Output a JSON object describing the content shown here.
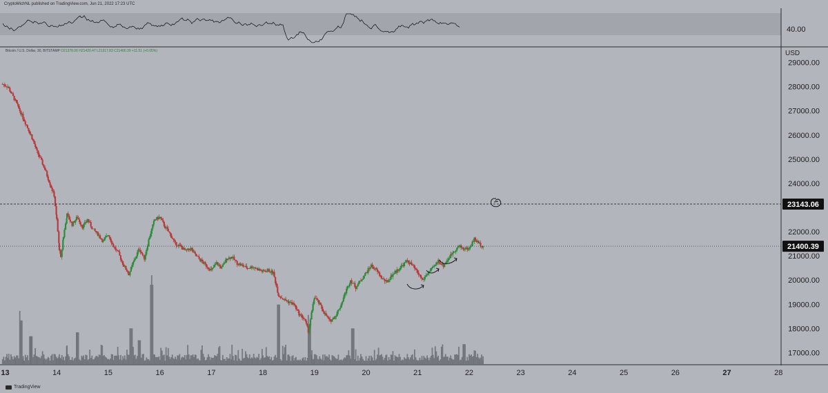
{
  "header": {
    "publish_line": "CryptoMichNL published on TradingView.com, Jun 21, 2022 17:23 UTC"
  },
  "symbol": {
    "name": "Bitcoin / U.S. Dollar, 30, BITSTAMP",
    "ohlc": "O21378.06 H21420.47 L21317.83 C21400.39 +11.51 (+0.05%)"
  },
  "currency_label": "USD",
  "watermark": "TradingView",
  "colors": {
    "background": "#b3b5bd",
    "up_candle": "#2e8b3a",
    "down_candle": "#b83a3a",
    "rsi_line": "#1b1b1b",
    "rsi_band": "#a3a5ad",
    "volume_bar": "#6b6d74",
    "annotation": "#1b1b1b",
    "price_tag_bg": "#101010",
    "price_tag_text": "#ffffff"
  },
  "chart_data": {
    "type": "candlestick",
    "title": "Bitcoin / U.S. Dollar, 30, BITSTAMP",
    "x_ticks": [
      "13",
      "14",
      "15",
      "16",
      "17",
      "18",
      "19",
      "20",
      "21",
      "22",
      "23",
      "24",
      "25",
      "26",
      "27",
      "28"
    ],
    "y_ticks": [
      "29000.00",
      "28000.00",
      "27000.00",
      "26000.00",
      "25000.00",
      "24000.00",
      "22000.00",
      "21000.00",
      "20000.00",
      "19000.00",
      "18000.00",
      "17000.00"
    ],
    "ylim": [
      16500,
      29300
    ],
    "xlim": [
      12.9,
      28.05
    ],
    "horizontal_lines": [
      {
        "value": 23143.06,
        "label": "23143.06",
        "style": "dashed"
      },
      {
        "value": 21400.39,
        "label": "21400.39",
        "style": "dotted"
      }
    ],
    "price_path": [
      [
        12.95,
        28100
      ],
      [
        13.05,
        28000
      ],
      [
        13.2,
        27400
      ],
      [
        13.35,
        26700
      ],
      [
        13.5,
        26000
      ],
      [
        13.62,
        25300
      ],
      [
        13.75,
        24700
      ],
      [
        13.85,
        24100
      ],
      [
        13.95,
        23500
      ],
      [
        14.0,
        22500
      ],
      [
        14.05,
        21300
      ],
      [
        14.08,
        20900
      ],
      [
        14.13,
        21800
      ],
      [
        14.2,
        22700
      ],
      [
        14.3,
        22300
      ],
      [
        14.4,
        22600
      ],
      [
        14.5,
        22200
      ],
      [
        14.6,
        22500
      ],
      [
        14.7,
        22100
      ],
      [
        14.8,
        21900
      ],
      [
        14.9,
        21600
      ],
      [
        15.0,
        21900
      ],
      [
        15.1,
        21400
      ],
      [
        15.2,
        21100
      ],
      [
        15.3,
        20600
      ],
      [
        15.4,
        20250
      ],
      [
        15.5,
        20800
      ],
      [
        15.6,
        21300
      ],
      [
        15.7,
        20900
      ],
      [
        15.8,
        21800
      ],
      [
        15.9,
        22500
      ],
      [
        16.0,
        22600
      ],
      [
        16.1,
        22200
      ],
      [
        16.2,
        21900
      ],
      [
        16.3,
        21500
      ],
      [
        16.4,
        21400
      ],
      [
        16.5,
        21200
      ],
      [
        16.6,
        21300
      ],
      [
        16.7,
        21000
      ],
      [
        16.8,
        20800
      ],
      [
        16.9,
        20600
      ],
      [
        17.0,
        20400
      ],
      [
        17.1,
        20700
      ],
      [
        17.2,
        20500
      ],
      [
        17.3,
        20900
      ],
      [
        17.4,
        20950
      ],
      [
        17.5,
        20700
      ],
      [
        17.6,
        20600
      ],
      [
        17.7,
        20500
      ],
      [
        17.8,
        20550
      ],
      [
        17.9,
        20450
      ],
      [
        18.0,
        20350
      ],
      [
        18.1,
        20400
      ],
      [
        18.2,
        20300
      ],
      [
        18.3,
        19400
      ],
      [
        18.4,
        19200
      ],
      [
        18.5,
        19100
      ],
      [
        18.6,
        19000
      ],
      [
        18.7,
        18600
      ],
      [
        18.8,
        18400
      ],
      [
        18.88,
        17900
      ],
      [
        18.95,
        18700
      ],
      [
        19.0,
        19300
      ],
      [
        19.1,
        19000
      ],
      [
        19.2,
        18600
      ],
      [
        19.3,
        18300
      ],
      [
        19.4,
        18500
      ],
      [
        19.5,
        18900
      ],
      [
        19.6,
        19500
      ],
      [
        19.7,
        20000
      ],
      [
        19.8,
        19700
      ],
      [
        19.9,
        20000
      ],
      [
        20.0,
        20300
      ],
      [
        20.1,
        20600
      ],
      [
        20.2,
        20400
      ],
      [
        20.3,
        20100
      ],
      [
        20.4,
        19900
      ],
      [
        20.5,
        20200
      ],
      [
        20.6,
        20400
      ],
      [
        20.7,
        20600
      ],
      [
        20.8,
        20800
      ],
      [
        20.9,
        20600
      ],
      [
        21.0,
        20300
      ],
      [
        21.1,
        20000
      ],
      [
        21.2,
        20300
      ],
      [
        21.3,
        20500
      ],
      [
        21.4,
        20800
      ],
      [
        21.5,
        20600
      ],
      [
        21.6,
        20900
      ],
      [
        21.7,
        21200
      ],
      [
        21.8,
        21400
      ],
      [
        21.9,
        21300
      ],
      [
        22.0,
        21300
      ],
      [
        22.1,
        21700
      ],
      [
        22.2,
        21500
      ],
      [
        22.27,
        21400
      ]
    ],
    "volume_spikes": [
      {
        "x": 13.3,
        "v": 0.55
      },
      {
        "x": 13.5,
        "v": 0.35
      },
      {
        "x": 14.4,
        "v": 0.4
      },
      {
        "x": 15.45,
        "v": 0.45
      },
      {
        "x": 15.6,
        "v": 0.3
      },
      {
        "x": 15.85,
        "v": 1.0
      },
      {
        "x": 18.3,
        "v": 0.75
      },
      {
        "x": 18.9,
        "v": 0.5
      },
      {
        "x": 19.75,
        "v": 0.45
      },
      {
        "x": 21.9,
        "v": 0.25
      }
    ],
    "rsi_reference": {
      "value": "40.00"
    }
  }
}
